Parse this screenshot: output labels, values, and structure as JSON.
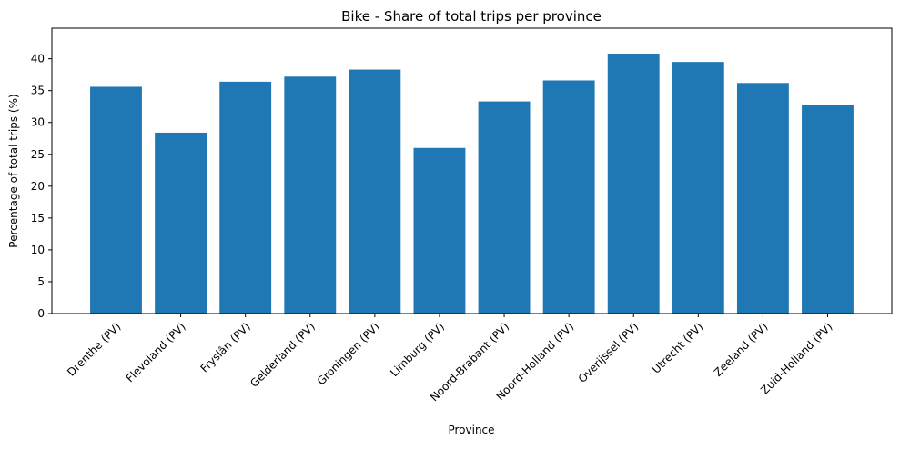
{
  "chart_data": {
    "type": "bar",
    "title": "Bike - Share of total trips per province",
    "xlabel": "Province",
    "ylabel": "Percentage of total trips (%)",
    "categories": [
      "Drenthe (PV)",
      "Flevoland (PV)",
      "Fryslân (PV)",
      "Gelderland (PV)",
      "Groningen (PV)",
      "Limburg (PV)",
      "Noord-Brabant (PV)",
      "Noord-Holland (PV)",
      "Overijssel (PV)",
      "Utrecht (PV)",
      "Zeeland (PV)",
      "Zuid-Holland (PV)"
    ],
    "values": [
      35.6,
      28.4,
      36.4,
      37.2,
      38.3,
      26.0,
      33.3,
      36.6,
      40.8,
      39.5,
      36.2,
      32.8
    ],
    "yticks": [
      0,
      5,
      10,
      15,
      20,
      25,
      30,
      35,
      40
    ],
    "ylim": [
      0,
      44.8
    ],
    "bar_color": "#1f77b4",
    "grid": false,
    "legend": "none"
  }
}
